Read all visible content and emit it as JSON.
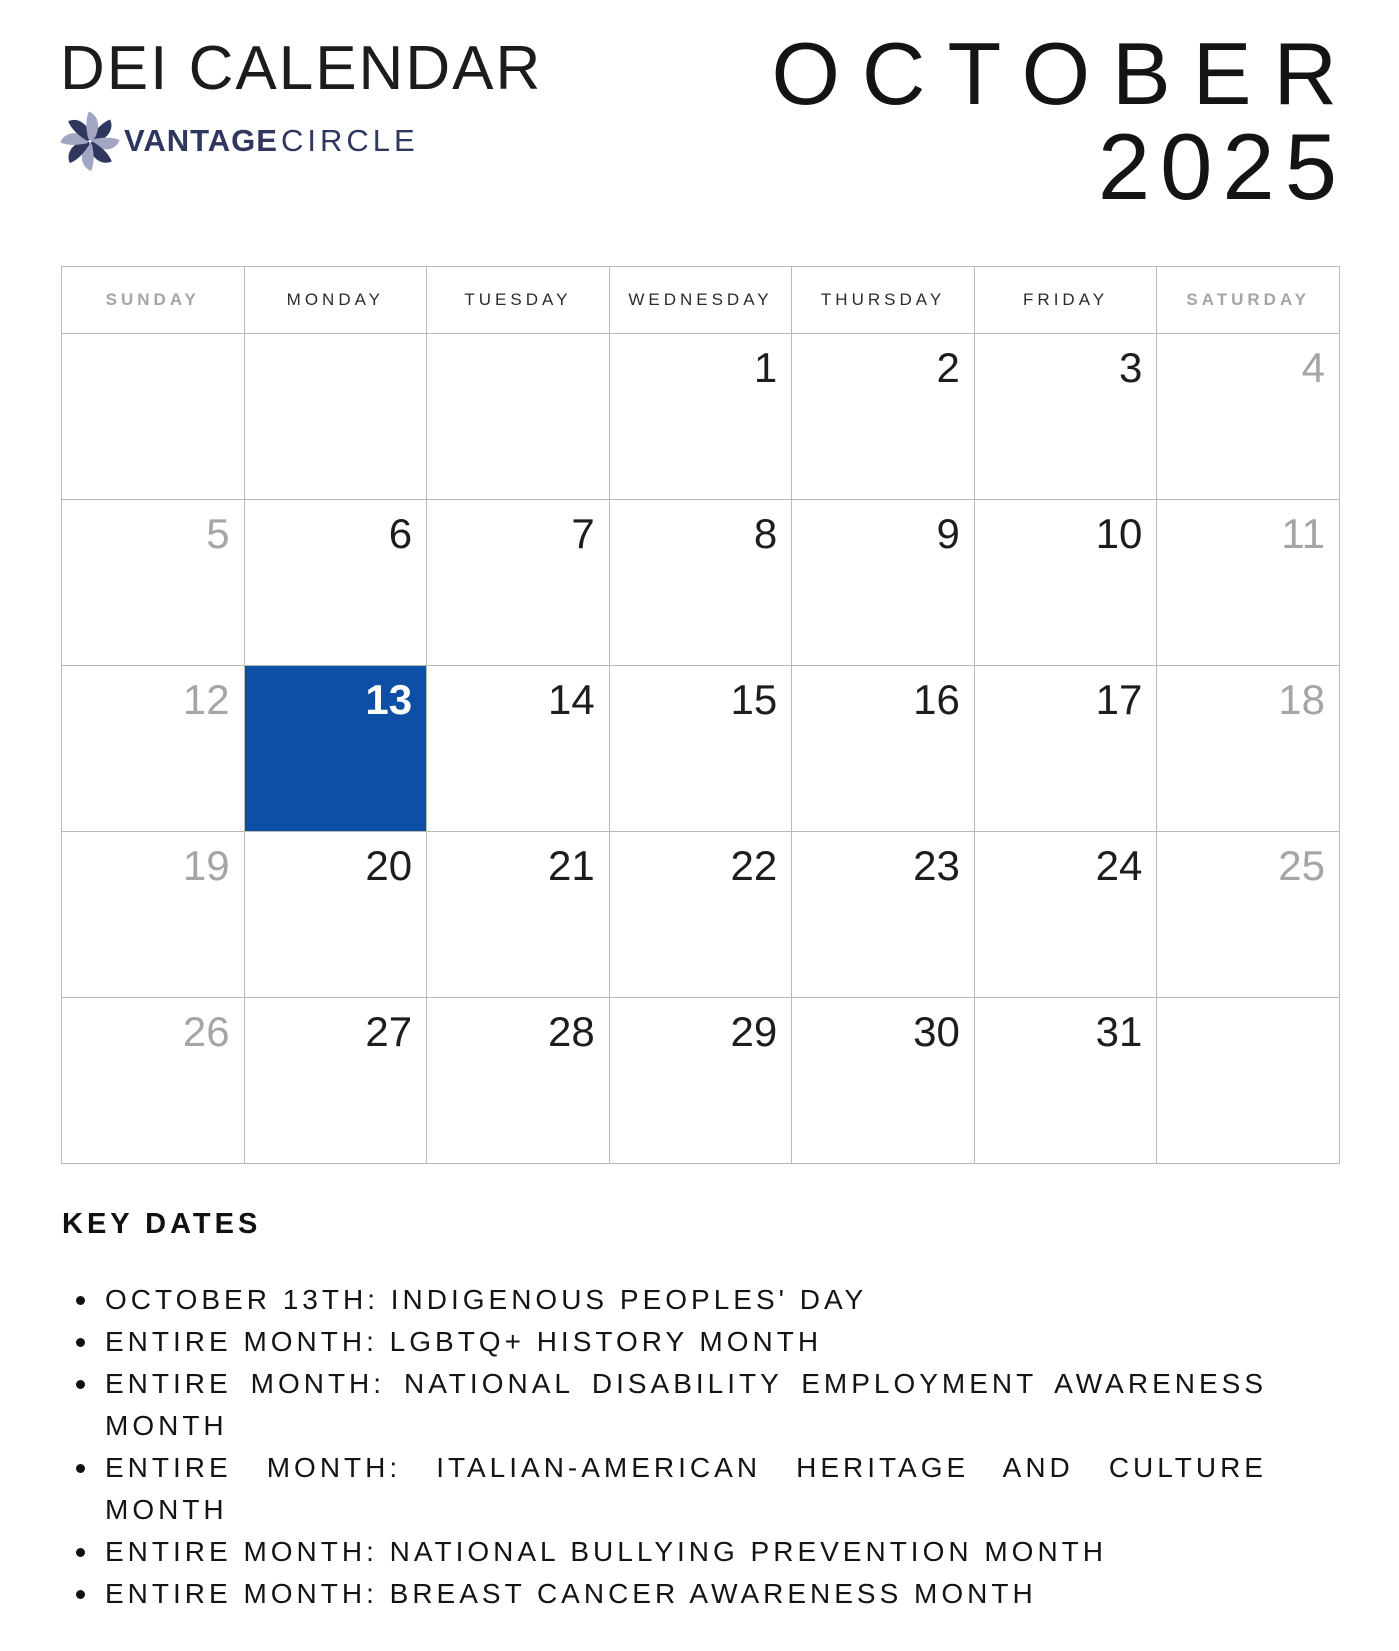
{
  "header": {
    "title": "DEI CALENDAR",
    "brand": {
      "bold": "VANTAGE",
      "light": "CIRCLE",
      "logo": "pinwheel-star-icon"
    },
    "month": "OCTOBER",
    "year": "2025"
  },
  "calendar": {
    "day_headers": [
      "SUNDAY",
      "MONDAY",
      "TUESDAY",
      "WEDNESDAY",
      "THURSDAY",
      "FRIDAY",
      "SATURDAY"
    ],
    "weeks": [
      [
        "",
        "",
        "",
        "1",
        "2",
        "3",
        "4"
      ],
      [
        "5",
        "6",
        "7",
        "8",
        "9",
        "10",
        "11"
      ],
      [
        "12",
        "13",
        "14",
        "15",
        "16",
        "17",
        "18"
      ],
      [
        "19",
        "20",
        "21",
        "22",
        "23",
        "24",
        "25"
      ],
      [
        "26",
        "27",
        "28",
        "29",
        "30",
        "31",
        ""
      ]
    ],
    "highlighted_date": "13"
  },
  "key_dates": {
    "heading": "KEY DATES",
    "items": [
      "OCTOBER 13TH: INDIGENOUS PEOPLES' DAY",
      "ENTIRE MONTH: LGBTQ+ HISTORY MONTH",
      "ENTIRE MONTH: NATIONAL DISABILITY EMPLOYMENT AWARENESS MONTH",
      "ENTIRE MONTH: ITALIAN-AMERICAN HERITAGE AND CULTURE MONTH",
      "ENTIRE MONTH: NATIONAL BULLYING PREVENTION MONTH",
      "ENTIRE MONTH: BREAST CANCER AWARENESS MONTH"
    ]
  },
  "colors": {
    "highlight_blue": "#0d4fa7",
    "weekend_gray": "#a5a5a5",
    "grid_border": "#b9b9b9",
    "logo_navy": "#30375f",
    "logo_lavender": "#a2a6c2"
  }
}
